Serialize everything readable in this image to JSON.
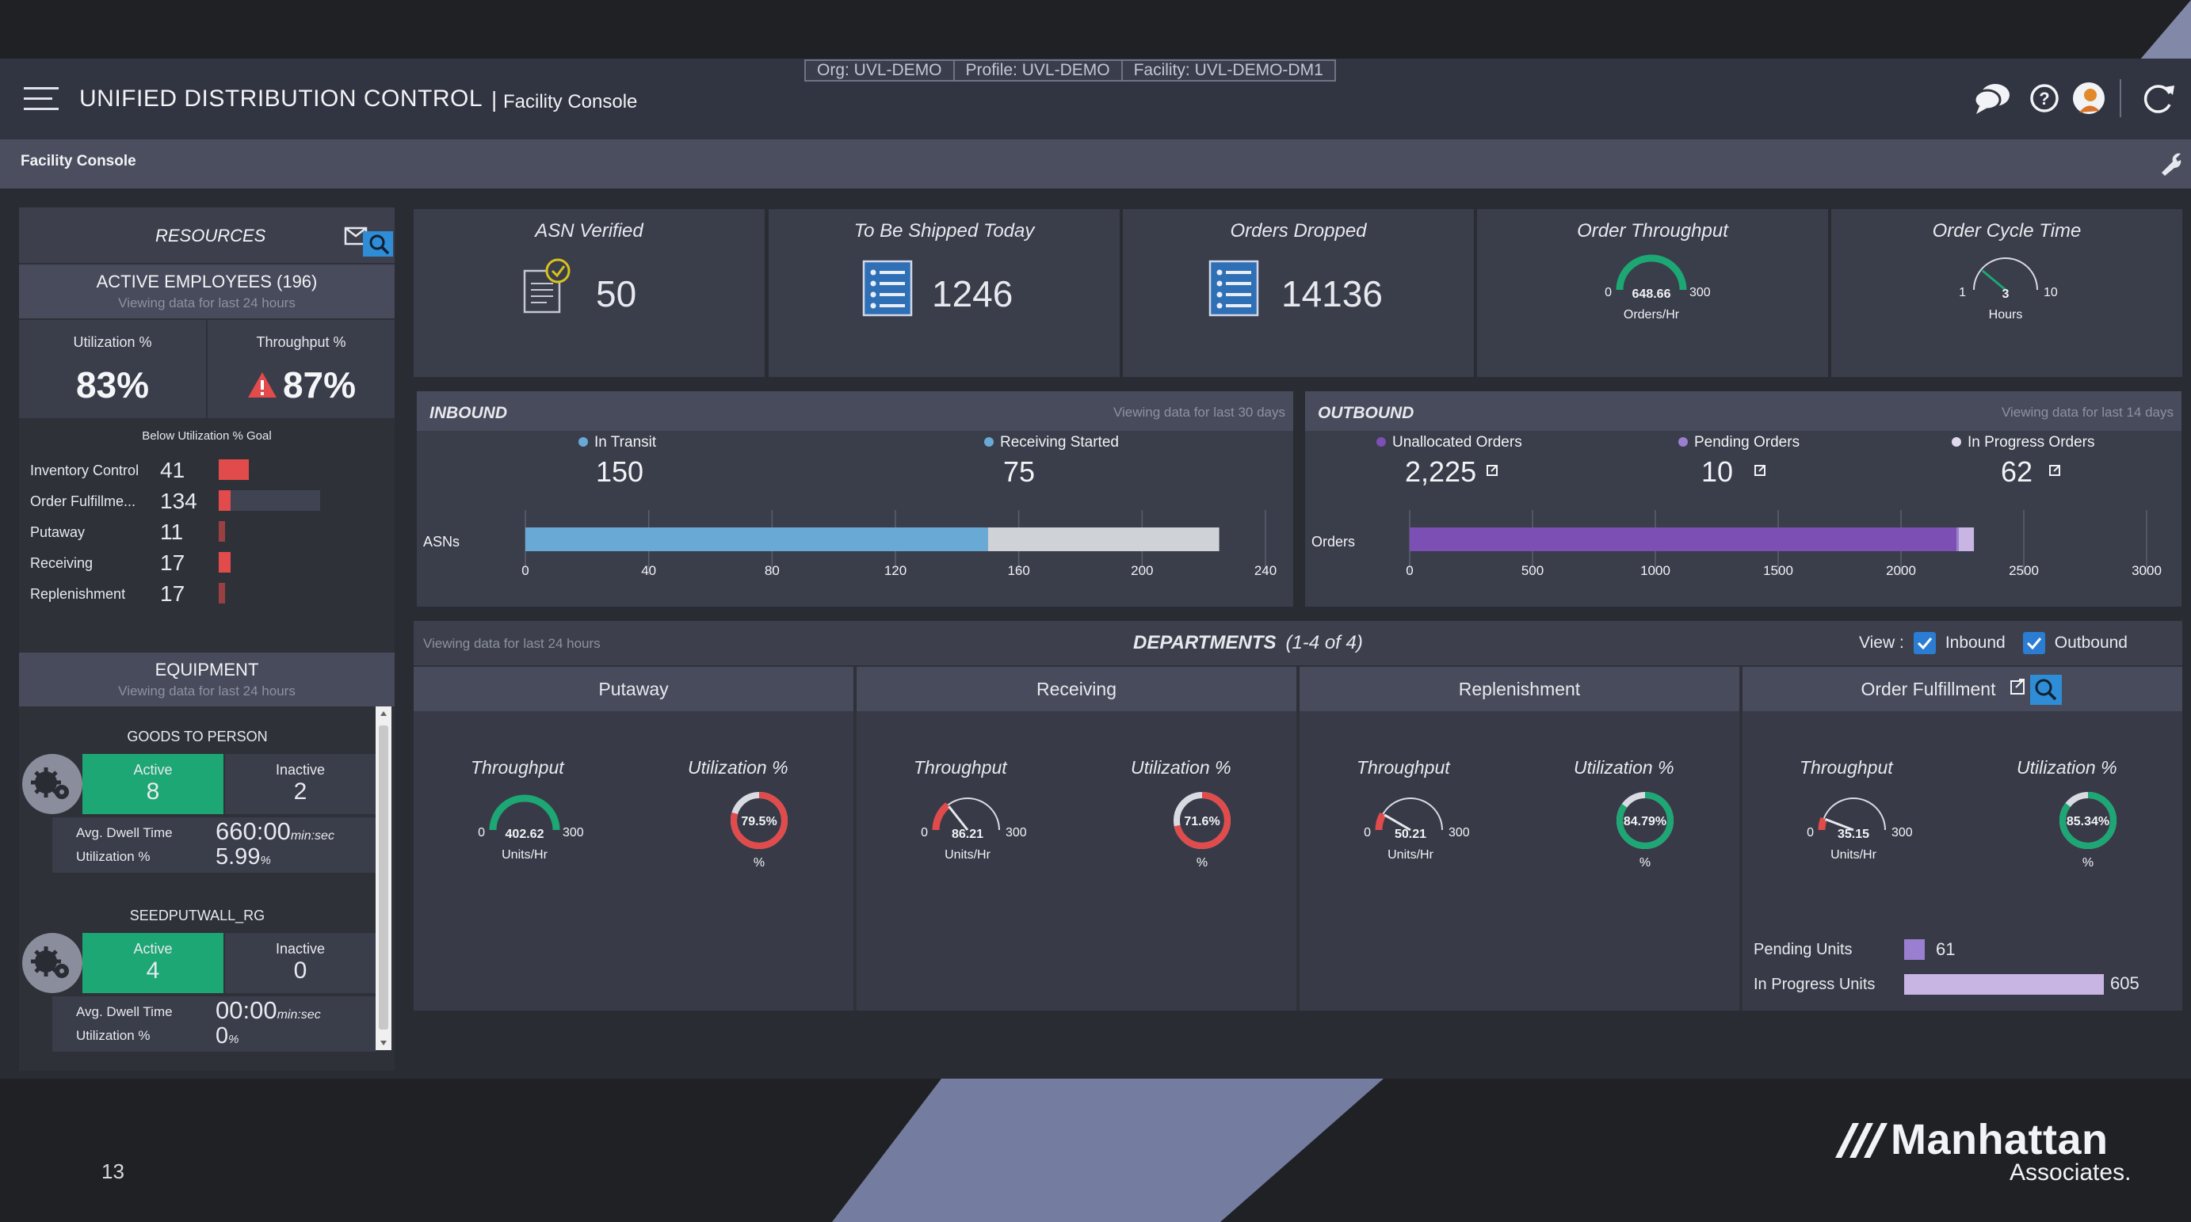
{
  "header": {
    "app_title": "UNIFIED DISTRIBUTION CONTROL",
    "sep": "|",
    "app_subtitle": "Facility Console",
    "org": "Org: UVL-DEMO",
    "profile": "Profile: UVL-DEMO",
    "facility": "Facility: UVL-DEMO-DM1"
  },
  "subheader": {
    "title": "Facility Console"
  },
  "resources": {
    "title": "RESOURCES",
    "employees_title": "ACTIVE EMPLOYEES (196)",
    "employees_sub": "Viewing data for last 24 hours",
    "util_label": "Utilization %",
    "util_value": "83%",
    "thru_label": "Throughput %",
    "thru_value": "87%",
    "below_goal_title": "Below Utilization % Goal",
    "below_goal": [
      {
        "name": "Inventory Control",
        "count": "41",
        "fill": 1.0
      },
      {
        "name": "Order Fulfillme...",
        "count": "134",
        "fill": 0.12
      },
      {
        "name": "Putaway",
        "count": "11",
        "fill": 0.05
      },
      {
        "name": "Receiving",
        "count": "17",
        "fill": 0.12
      },
      {
        "name": "Replenishment",
        "count": "17",
        "fill": 0.05
      }
    ]
  },
  "equipment": {
    "title": "EQUIPMENT",
    "sub": "Viewing data for last 24 hours",
    "groups": [
      {
        "name": "GOODS TO PERSON",
        "active_label": "Active",
        "active": "8",
        "inactive_label": "Inactive",
        "inactive": "2",
        "dwell_label": "Avg. Dwell Time",
        "dwell": "660:00",
        "dwell_unit": "min:sec",
        "util_label": "Utilization %",
        "util": "5.99",
        "util_unit": "%"
      },
      {
        "name": "SEEDPUTWALL_RG",
        "active_label": "Active",
        "active": "4",
        "inactive_label": "Inactive",
        "inactive": "0",
        "dwell_label": "Avg. Dwell Time",
        "dwell": "00:00",
        "dwell_unit": "min:sec",
        "util_label": "Utilization %",
        "util": "0",
        "util_unit": "%"
      }
    ]
  },
  "kpis": {
    "asn": {
      "title": "ASN Verified",
      "value": "50"
    },
    "ship": {
      "title": "To Be Shipped Today",
      "value": "1246"
    },
    "dropped": {
      "title": "Orders Dropped",
      "value": "14136"
    },
    "throughput": {
      "title": "Order Throughput",
      "min": "0",
      "max": "300",
      "value": "648.66",
      "unit": "Orders/Hr",
      "frac": 1.0
    },
    "cycle": {
      "title": "Order Cycle Time",
      "min": "1",
      "max": "10",
      "value": "3",
      "unit": "Hours",
      "frac": 0.22
    }
  },
  "inbound": {
    "title": "INBOUND",
    "sub": "Viewing data for last 30 days",
    "s1_label": "In Transit",
    "s1_value": "150",
    "s2_label": "Receiving Started",
    "s2_value": "75",
    "axis_label": "ASNs",
    "ticks": [
      "0",
      "40",
      "80",
      "120",
      "160",
      "200",
      "240"
    ]
  },
  "outbound": {
    "title": "OUTBOUND",
    "sub": "Viewing data for last 14 days",
    "s1_label": "Unallocated Orders",
    "s1_value": "2,225",
    "s2_label": "Pending Orders",
    "s2_value": "10",
    "s3_label": "In Progress Orders",
    "s3_value": "62",
    "axis_label": "Orders",
    "ticks": [
      "0",
      "500",
      "1000",
      "1500",
      "2000",
      "2500",
      "3000"
    ]
  },
  "departments": {
    "sub": "Viewing data for last 24 hours",
    "title": "DEPARTMENTS",
    "count": "(1-4 of 4)",
    "view_label": "View :",
    "inbound_label": "Inbound",
    "outbound_label": "Outbound",
    "thr_label": "Throughput",
    "util_label": "Utilization %",
    "thr_unit": "Units/Hr",
    "util_unit": "%",
    "gmin": "0",
    "gmax": "300",
    "pending_label": "Pending Units",
    "pending": "61",
    "inprog_label": "In Progress Units",
    "inprog": "605",
    "items": [
      {
        "name": "Putaway",
        "thr": "402.62",
        "thr_frac": 1.0,
        "util": "79.5%",
        "util_frac": 0.795
      },
      {
        "name": "Receiving",
        "thr": "86.21",
        "thr_frac": 0.287,
        "util": "71.6%",
        "util_frac": 0.716
      },
      {
        "name": "Replenishment",
        "thr": "50.21",
        "thr_frac": 0.167,
        "util": "84.79%",
        "util_frac": 0.8479
      },
      {
        "name": "Order Fulfillment",
        "thr": "35.15",
        "thr_frac": 0.117,
        "util": "85.34%",
        "util_frac": 0.8534
      }
    ]
  },
  "footer": {
    "page": "13",
    "brand": "Manhattan",
    "brand_sub": "Associates."
  },
  "chart_data": [
    {
      "type": "bar",
      "title": "INBOUND",
      "ylabel": "ASNs",
      "xlim": [
        0,
        240
      ],
      "series": [
        {
          "name": "In Transit",
          "values": [
            150
          ],
          "color": "#69a9d6"
        },
        {
          "name": "Receiving Started",
          "values": [
            75
          ],
          "color": "#cfd2d6"
        }
      ]
    },
    {
      "type": "bar",
      "title": "OUTBOUND",
      "ylabel": "Orders",
      "xlim": [
        0,
        3000
      ],
      "series": [
        {
          "name": "Unallocated Orders",
          "values": [
            2225
          ],
          "color": "#7b4fb3"
        },
        {
          "name": "Pending Orders",
          "values": [
            10
          ],
          "color": "#9a7ed0"
        },
        {
          "name": "In Progress Orders",
          "values": [
            62
          ],
          "color": "#c9b5e3"
        }
      ]
    }
  ],
  "colors": {
    "accent_green": "#1ca774",
    "alert_red": "#e14b4b",
    "inbound_blue": "#69a9d6",
    "purple": "#7b4fb3"
  }
}
